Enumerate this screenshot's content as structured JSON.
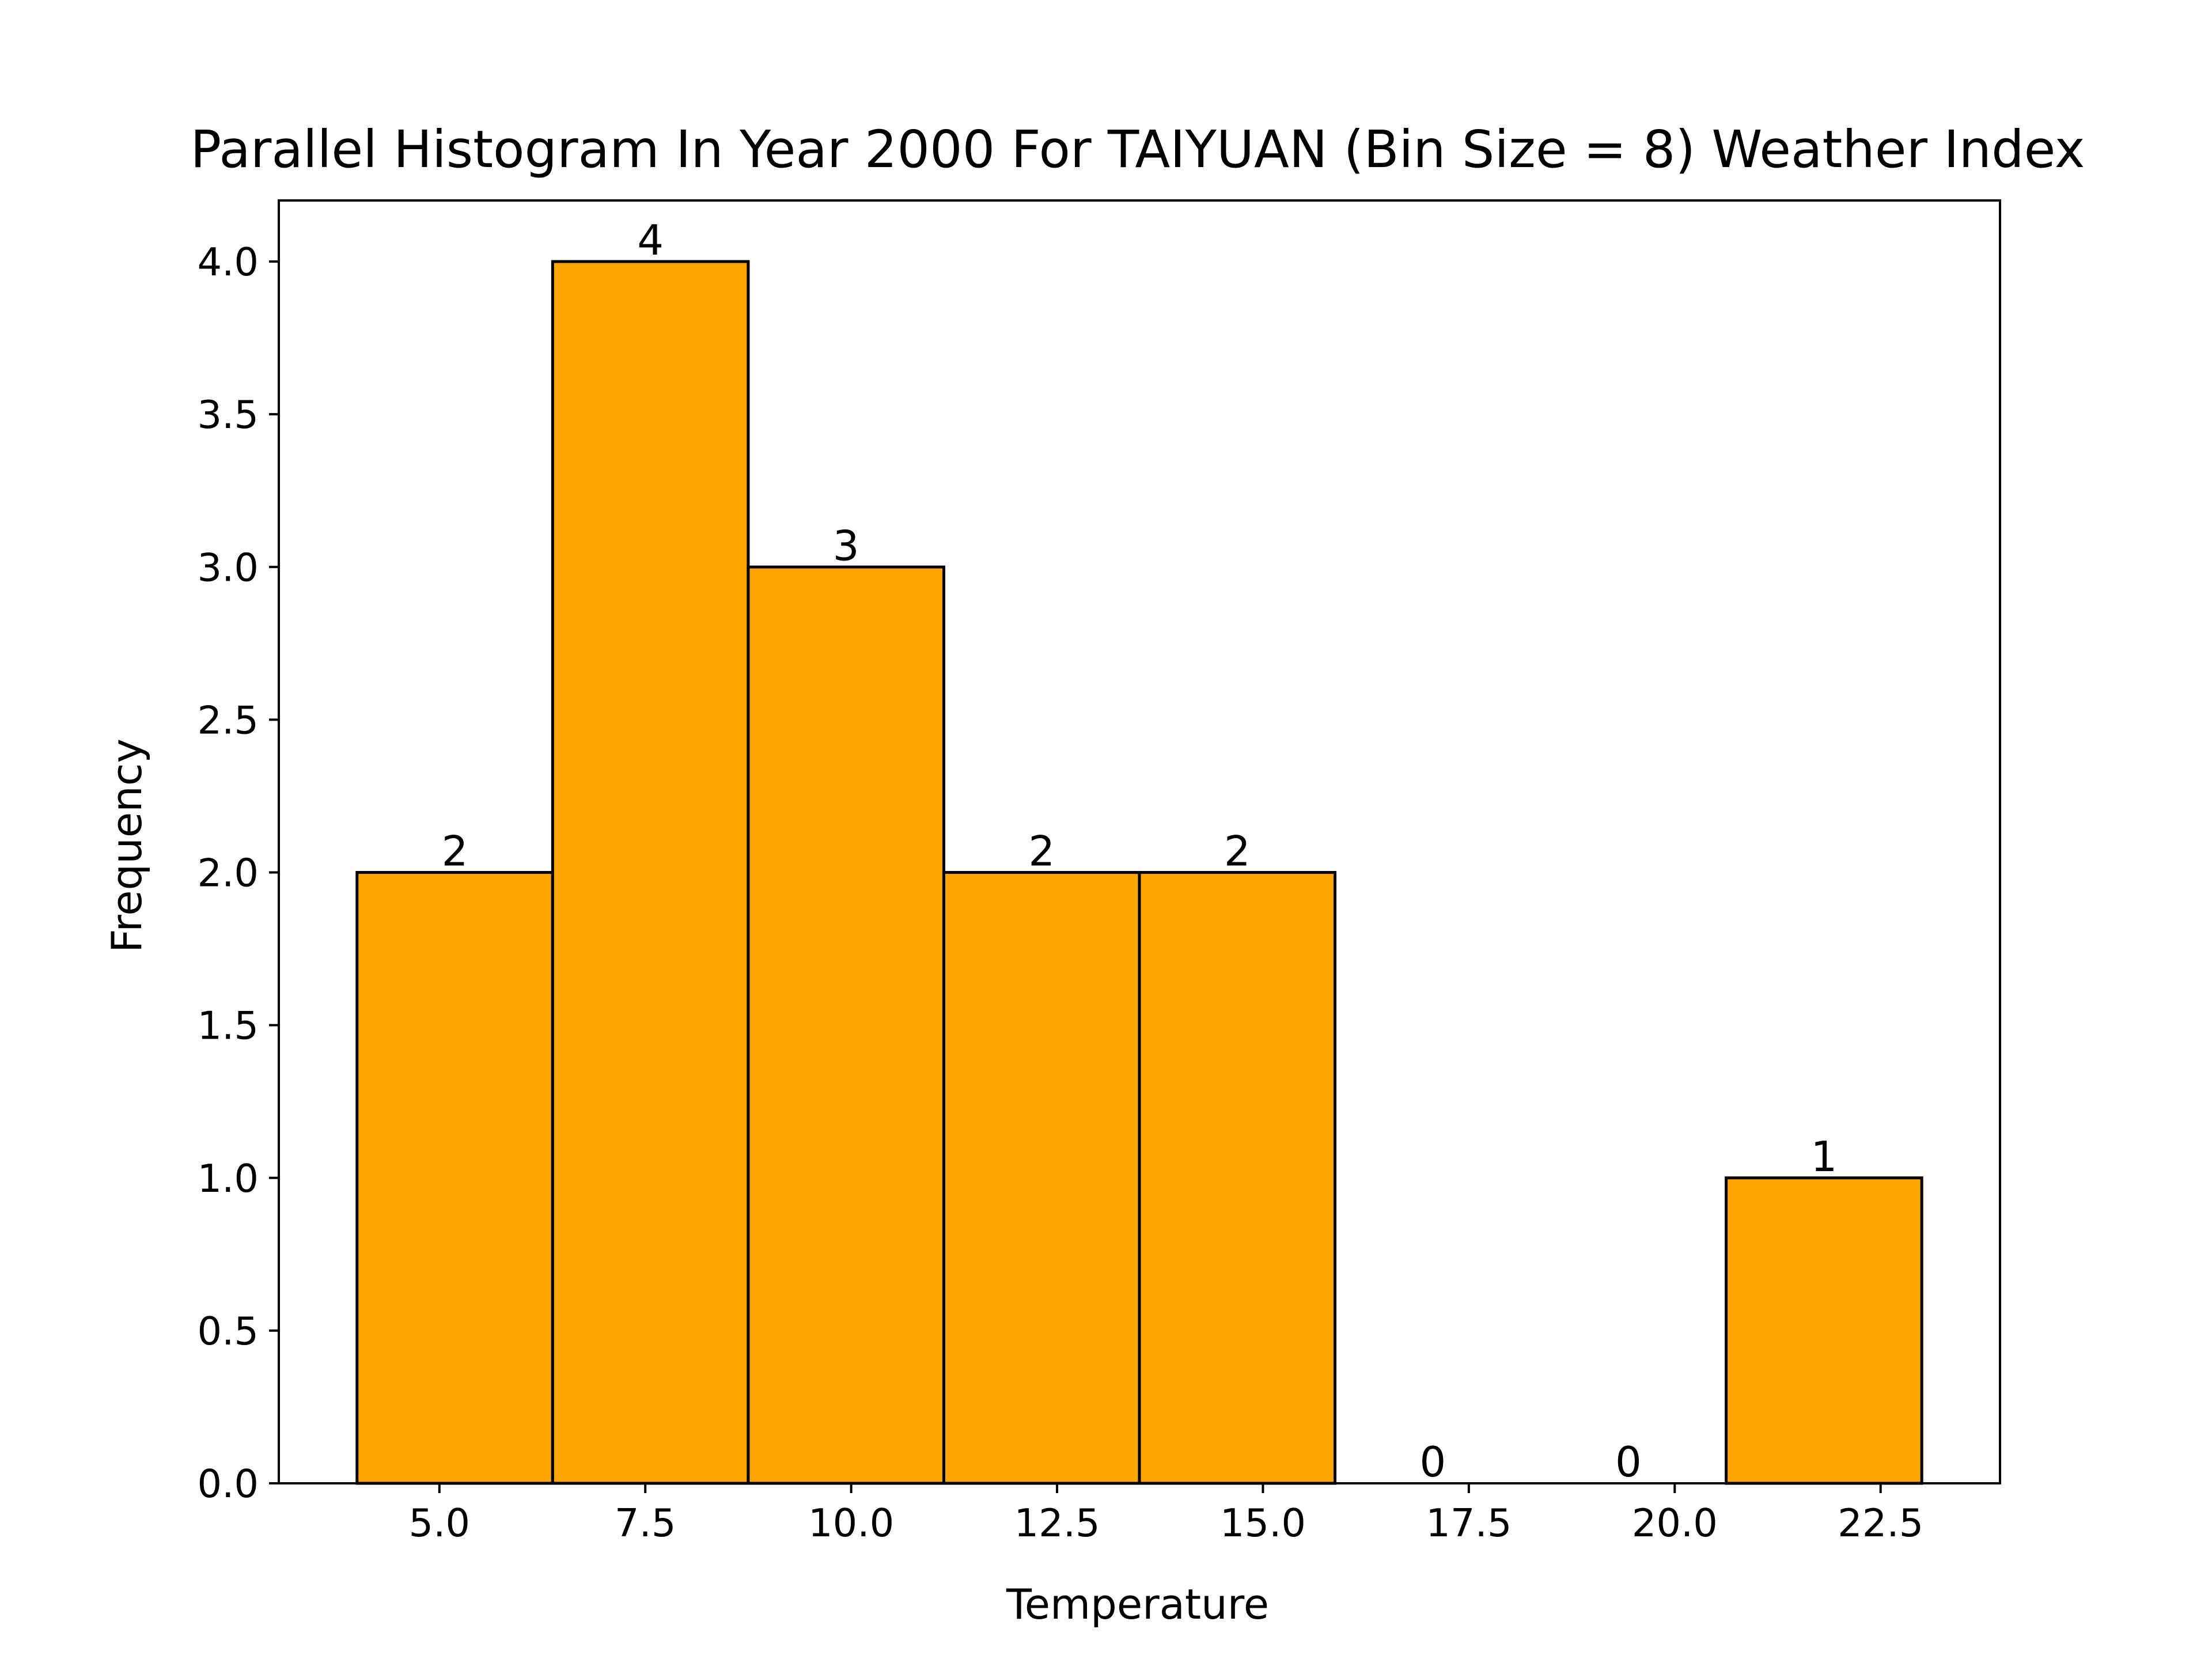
{
  "chart_data": {
    "type": "bar",
    "title": "Parallel Histogram In Year 2000 For TAIYUAN (Bin Size = 8) Weather Index",
    "xlabel": "Temperature",
    "ylabel": "Frequency",
    "xlim": [
      3.05,
      23.95
    ],
    "ylim": [
      0,
      4.2
    ],
    "grid": false,
    "bar_color": "#FFA500",
    "edge_color": "#000000",
    "bins": [
      {
        "x0": 4.0,
        "x1": 6.375,
        "count": 2,
        "label": "2"
      },
      {
        "x0": 6.375,
        "x1": 8.75,
        "count": 4,
        "label": "4"
      },
      {
        "x0": 8.75,
        "x1": 11.125,
        "count": 3,
        "label": "3"
      },
      {
        "x0": 11.125,
        "x1": 13.5,
        "count": 2,
        "label": "2"
      },
      {
        "x0": 13.5,
        "x1": 15.875,
        "count": 2,
        "label": "2"
      },
      {
        "x0": 15.875,
        "x1": 18.25,
        "count": 0,
        "label": "0"
      },
      {
        "x0": 18.25,
        "x1": 20.625,
        "count": 0,
        "label": "0"
      },
      {
        "x0": 20.625,
        "x1": 23.0,
        "count": 1,
        "label": "1"
      }
    ],
    "xticks": [
      {
        "value": 5.0,
        "label": "5.0"
      },
      {
        "value": 7.5,
        "label": "7.5"
      },
      {
        "value": 10.0,
        "label": "10.0"
      },
      {
        "value": 12.5,
        "label": "12.5"
      },
      {
        "value": 15.0,
        "label": "15.0"
      },
      {
        "value": 17.5,
        "label": "17.5"
      },
      {
        "value": 20.0,
        "label": "20.0"
      },
      {
        "value": 22.5,
        "label": "22.5"
      }
    ],
    "yticks": [
      {
        "value": 0.0,
        "label": "0.0"
      },
      {
        "value": 0.5,
        "label": "0.5"
      },
      {
        "value": 1.0,
        "label": "1.0"
      },
      {
        "value": 1.5,
        "label": "1.5"
      },
      {
        "value": 2.0,
        "label": "2.0"
      },
      {
        "value": 2.5,
        "label": "2.5"
      },
      {
        "value": 3.0,
        "label": "3.0"
      },
      {
        "value": 3.5,
        "label": "3.5"
      },
      {
        "value": 4.0,
        "label": "4.0"
      }
    ]
  }
}
